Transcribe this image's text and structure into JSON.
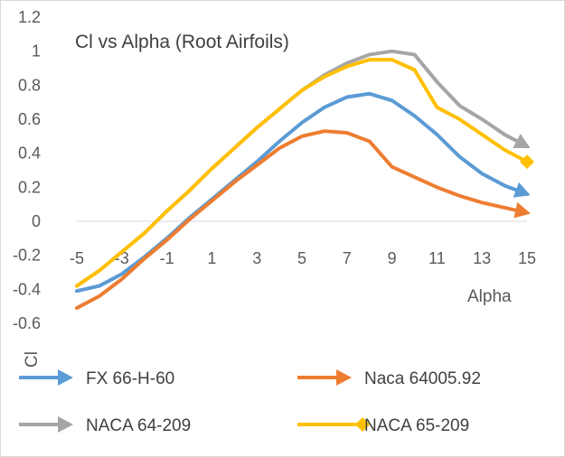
{
  "chart_data": {
    "type": "line",
    "title": "Cl vs Alpha (Root Airfoils)",
    "xlabel": "Alpha",
    "ylabel": "Cl",
    "xlim": [
      -5,
      15
    ],
    "ylim": [
      -0.6,
      1.2
    ],
    "x_ticks": [
      "-5",
      "-3",
      "-1",
      "1",
      "3",
      "5",
      "7",
      "9",
      "11",
      "13",
      "15"
    ],
    "y_ticks": [
      "1.2",
      "1",
      "0.8",
      "0.6",
      "0.4",
      "0.2",
      "0",
      "-0.2",
      "-0.4",
      "-0.6"
    ],
    "grid": false,
    "legend_position": "bottom",
    "x": [
      -5,
      -4,
      -3,
      -2,
      -1,
      0,
      1,
      2,
      3,
      4,
      5,
      6,
      7,
      8,
      9,
      10,
      11,
      12,
      13,
      14,
      15
    ],
    "series": [
      {
        "name": "FX 66-H-60",
        "color": "#5b9bd5",
        "end_marker": "arrow",
        "values": [
          -0.41,
          -0.38,
          -0.31,
          -0.21,
          -0.1,
          0.02,
          0.13,
          0.24,
          0.35,
          0.47,
          0.58,
          0.67,
          0.73,
          0.75,
          0.71,
          0.62,
          0.51,
          0.38,
          0.28,
          0.21,
          0.16
        ]
      },
      {
        "name": "Naca 64005.92",
        "color": "#ed7d31",
        "end_marker": "arrow",
        "values": [
          -0.51,
          -0.44,
          -0.34,
          -0.22,
          -0.11,
          0.01,
          0.12,
          0.23,
          0.33,
          0.43,
          0.5,
          0.53,
          0.52,
          0.47,
          0.32,
          0.26,
          0.2,
          0.15,
          0.11,
          0.08,
          0.05
        ]
      },
      {
        "name": "NACA 64-209",
        "color": "#a5a5a5",
        "end_marker": "arrow",
        "values": [
          -0.38,
          -0.29,
          -0.18,
          -0.07,
          0.06,
          0.18,
          0.31,
          0.43,
          0.55,
          0.66,
          0.77,
          0.86,
          0.93,
          0.98,
          1.0,
          0.98,
          0.82,
          0.68,
          0.6,
          0.51,
          0.44
        ]
      },
      {
        "name": "NACA 65-209",
        "color": "#ffc000",
        "end_marker": "diamond",
        "values": [
          -0.38,
          -0.29,
          -0.18,
          -0.07,
          0.06,
          0.18,
          0.31,
          0.43,
          0.55,
          0.66,
          0.77,
          0.85,
          0.91,
          0.95,
          0.95,
          0.89,
          0.67,
          0.6,
          0.51,
          0.42,
          0.35
        ]
      }
    ]
  }
}
